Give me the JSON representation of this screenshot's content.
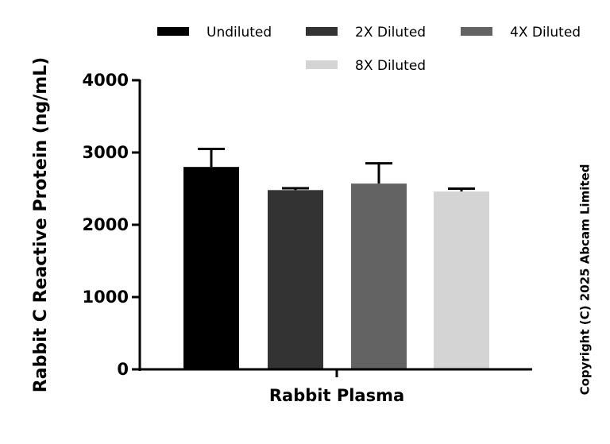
{
  "chart_data": {
    "type": "bar",
    "title": "",
    "xlabel": "",
    "ylabel": "Rabbit C Reactive Protein (ng/mL)",
    "categories": [
      "Rabbit Plasma"
    ],
    "ylim": [
      0,
      4000
    ],
    "yticks": [
      "0",
      "1000",
      "2000",
      "3000",
      "4000"
    ],
    "grid": false,
    "legend_position": "top",
    "series": [
      {
        "name": "Undiluted",
        "color": "#000000",
        "values": [
          2800
        ],
        "error_upper": [
          3050
        ]
      },
      {
        "name": "2X Diluted",
        "color": "#333333",
        "values": [
          2480
        ],
        "error_upper": [
          2505
        ]
      },
      {
        "name": "4X Diluted",
        "color": "#636363",
        "values": [
          2570
        ],
        "error_upper": [
          2850
        ]
      },
      {
        "name": "8X Diluted",
        "color": "#d4d4d4",
        "values": [
          2460
        ],
        "error_upper": [
          2500
        ]
      }
    ],
    "copyright": "Copyright (C) 2025 Abcam Limited"
  }
}
